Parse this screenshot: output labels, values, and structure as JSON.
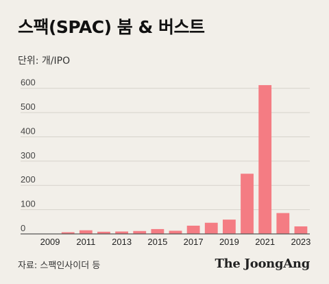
{
  "header": {
    "title": "스팩(SPAC) 붐 & 버스트",
    "unit": "단위: 개/IPO"
  },
  "footer": {
    "source": "자료: 스팩인사이더 등",
    "brand": "The JoongAng"
  },
  "colors": {
    "bar": "#f47c83",
    "grid": "#d6d2cb",
    "baseline": "#555555",
    "background": "#f2efe9"
  },
  "chart_data": {
    "type": "bar",
    "title": "스팩(SPAC) 붐 & 버스트",
    "xlabel": "",
    "ylabel": "",
    "categories": [
      "2009",
      "2010",
      "2011",
      "2012",
      "2013",
      "2014",
      "2015",
      "2016",
      "2017",
      "2018",
      "2019",
      "2020",
      "2021",
      "2022",
      "2023"
    ],
    "values": [
      1,
      7,
      15,
      9,
      10,
      12,
      20,
      13,
      34,
      46,
      59,
      248,
      613,
      86,
      31
    ],
    "ylim": [
      0,
      650
    ],
    "yticks": [
      0,
      100,
      200,
      300,
      400,
      500,
      600
    ],
    "xtick_labels": [
      "2009",
      "2011",
      "2013",
      "2015",
      "2017",
      "2019",
      "2021",
      "2023"
    ],
    "grid": true,
    "legend": "none"
  }
}
